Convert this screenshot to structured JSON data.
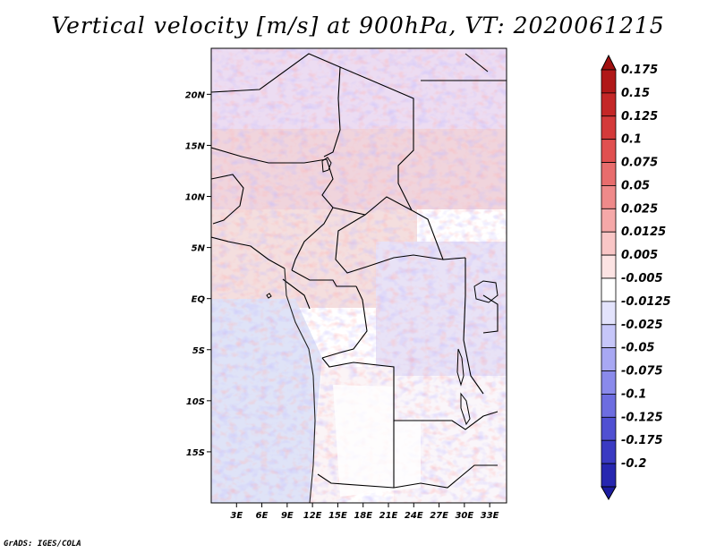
{
  "title": "Vertical velocity [m/s] at 900hPa, VT: 2020061215",
  "footer": "GrADS: IGES/COLA",
  "map": {
    "lon_range_deg": [
      0,
      35
    ],
    "lat_range_deg": [
      -20,
      24.5
    ],
    "lat_ticks": [
      {
        "value": 20,
        "label": "20N"
      },
      {
        "value": 15,
        "label": "15N"
      },
      {
        "value": 10,
        "label": "10N"
      },
      {
        "value": 5,
        "label": "5N"
      },
      {
        "value": 0,
        "label": "EQ"
      },
      {
        "value": -5,
        "label": "5S"
      },
      {
        "value": -10,
        "label": "10S"
      },
      {
        "value": -15,
        "label": "15S"
      }
    ],
    "lon_ticks": [
      {
        "value": 3,
        "label": "3E"
      },
      {
        "value": 6,
        "label": "6E"
      },
      {
        "value": 9,
        "label": "9E"
      },
      {
        "value": 12,
        "label": "12E"
      },
      {
        "value": 15,
        "label": "15E"
      },
      {
        "value": 18,
        "label": "18E"
      },
      {
        "value": 21,
        "label": "21E"
      },
      {
        "value": 24,
        "label": "24E"
      },
      {
        "value": 27,
        "label": "27E"
      },
      {
        "value": 30,
        "label": "30E"
      },
      {
        "value": 33,
        "label": "33E"
      }
    ]
  },
  "colorbar": {
    "levels": [
      {
        "label": "0.175",
        "color": "#b01818"
      },
      {
        "label": "0.15",
        "color": "#c42727"
      },
      {
        "label": "0.125",
        "color": "#d43a3a"
      },
      {
        "label": "0.1",
        "color": "#e05050"
      },
      {
        "label": "0.075",
        "color": "#e86d6d"
      },
      {
        "label": "0.05",
        "color": "#ef8a8a"
      },
      {
        "label": "0.025",
        "color": "#f5a8a8"
      },
      {
        "label": "0.0125",
        "color": "#f9c6c6"
      },
      {
        "label": "0.005",
        "color": "#fce3e3"
      },
      {
        "label": "-0.005",
        "color": "#ffffff"
      },
      {
        "label": "-0.0125",
        "color": "#e3e3fc"
      },
      {
        "label": "-0.025",
        "color": "#c6c6f9"
      },
      {
        "label": "-0.05",
        "color": "#a8a8f3"
      },
      {
        "label": "-0.075",
        "color": "#8a8aeb"
      },
      {
        "label": "-0.1",
        "color": "#6d6de0"
      },
      {
        "label": "-0.125",
        "color": "#5050d2"
      },
      {
        "label": "-0.175",
        "color": "#3a3ac2"
      },
      {
        "label": "-0.2",
        "color": "#2727b0"
      }
    ],
    "top_cap_color": "#a01010",
    "bottom_cap_color": "#1c1ca0"
  }
}
